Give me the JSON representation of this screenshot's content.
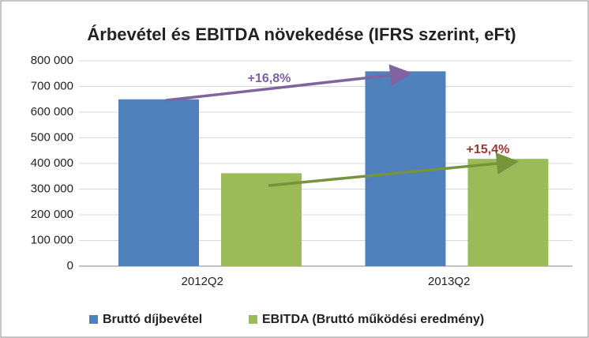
{
  "chart_data": {
    "type": "bar",
    "title": "Árbevétel és EBITDA növekedése (IFRS szerint, eFt)",
    "categories": [
      "2012Q2",
      "2013Q2"
    ],
    "series": [
      {
        "name": "Bruttó díjbevétel",
        "color": "#4f81bd",
        "values": [
          650000,
          759000
        ]
      },
      {
        "name": "EBITDA (Bruttó működési eredmény)",
        "color": "#9bbb59",
        "values": [
          362000,
          418000
        ]
      }
    ],
    "ylim": [
      0,
      800000
    ],
    "yticks": [
      0,
      {
        "value": 100000,
        "label": "100 000"
      },
      {
        "value": 200000,
        "label": "200 000"
      },
      {
        "value": 300000,
        "label": "300 000"
      },
      {
        "value": 400000,
        "label": "400 000"
      },
      {
        "value": 500000,
        "label": "500 000"
      },
      {
        "value": 600000,
        "label": "600 000"
      },
      {
        "value": 700000,
        "label": "700 000"
      },
      {
        "value": 800000,
        "label": "800 000"
      }
    ],
    "grid": true,
    "legend": "bottom",
    "annotations": [
      {
        "text": "+16,8%",
        "color": "#7f5f9f"
      },
      {
        "text": "+15,4%",
        "color": "#953735"
      }
    ]
  }
}
